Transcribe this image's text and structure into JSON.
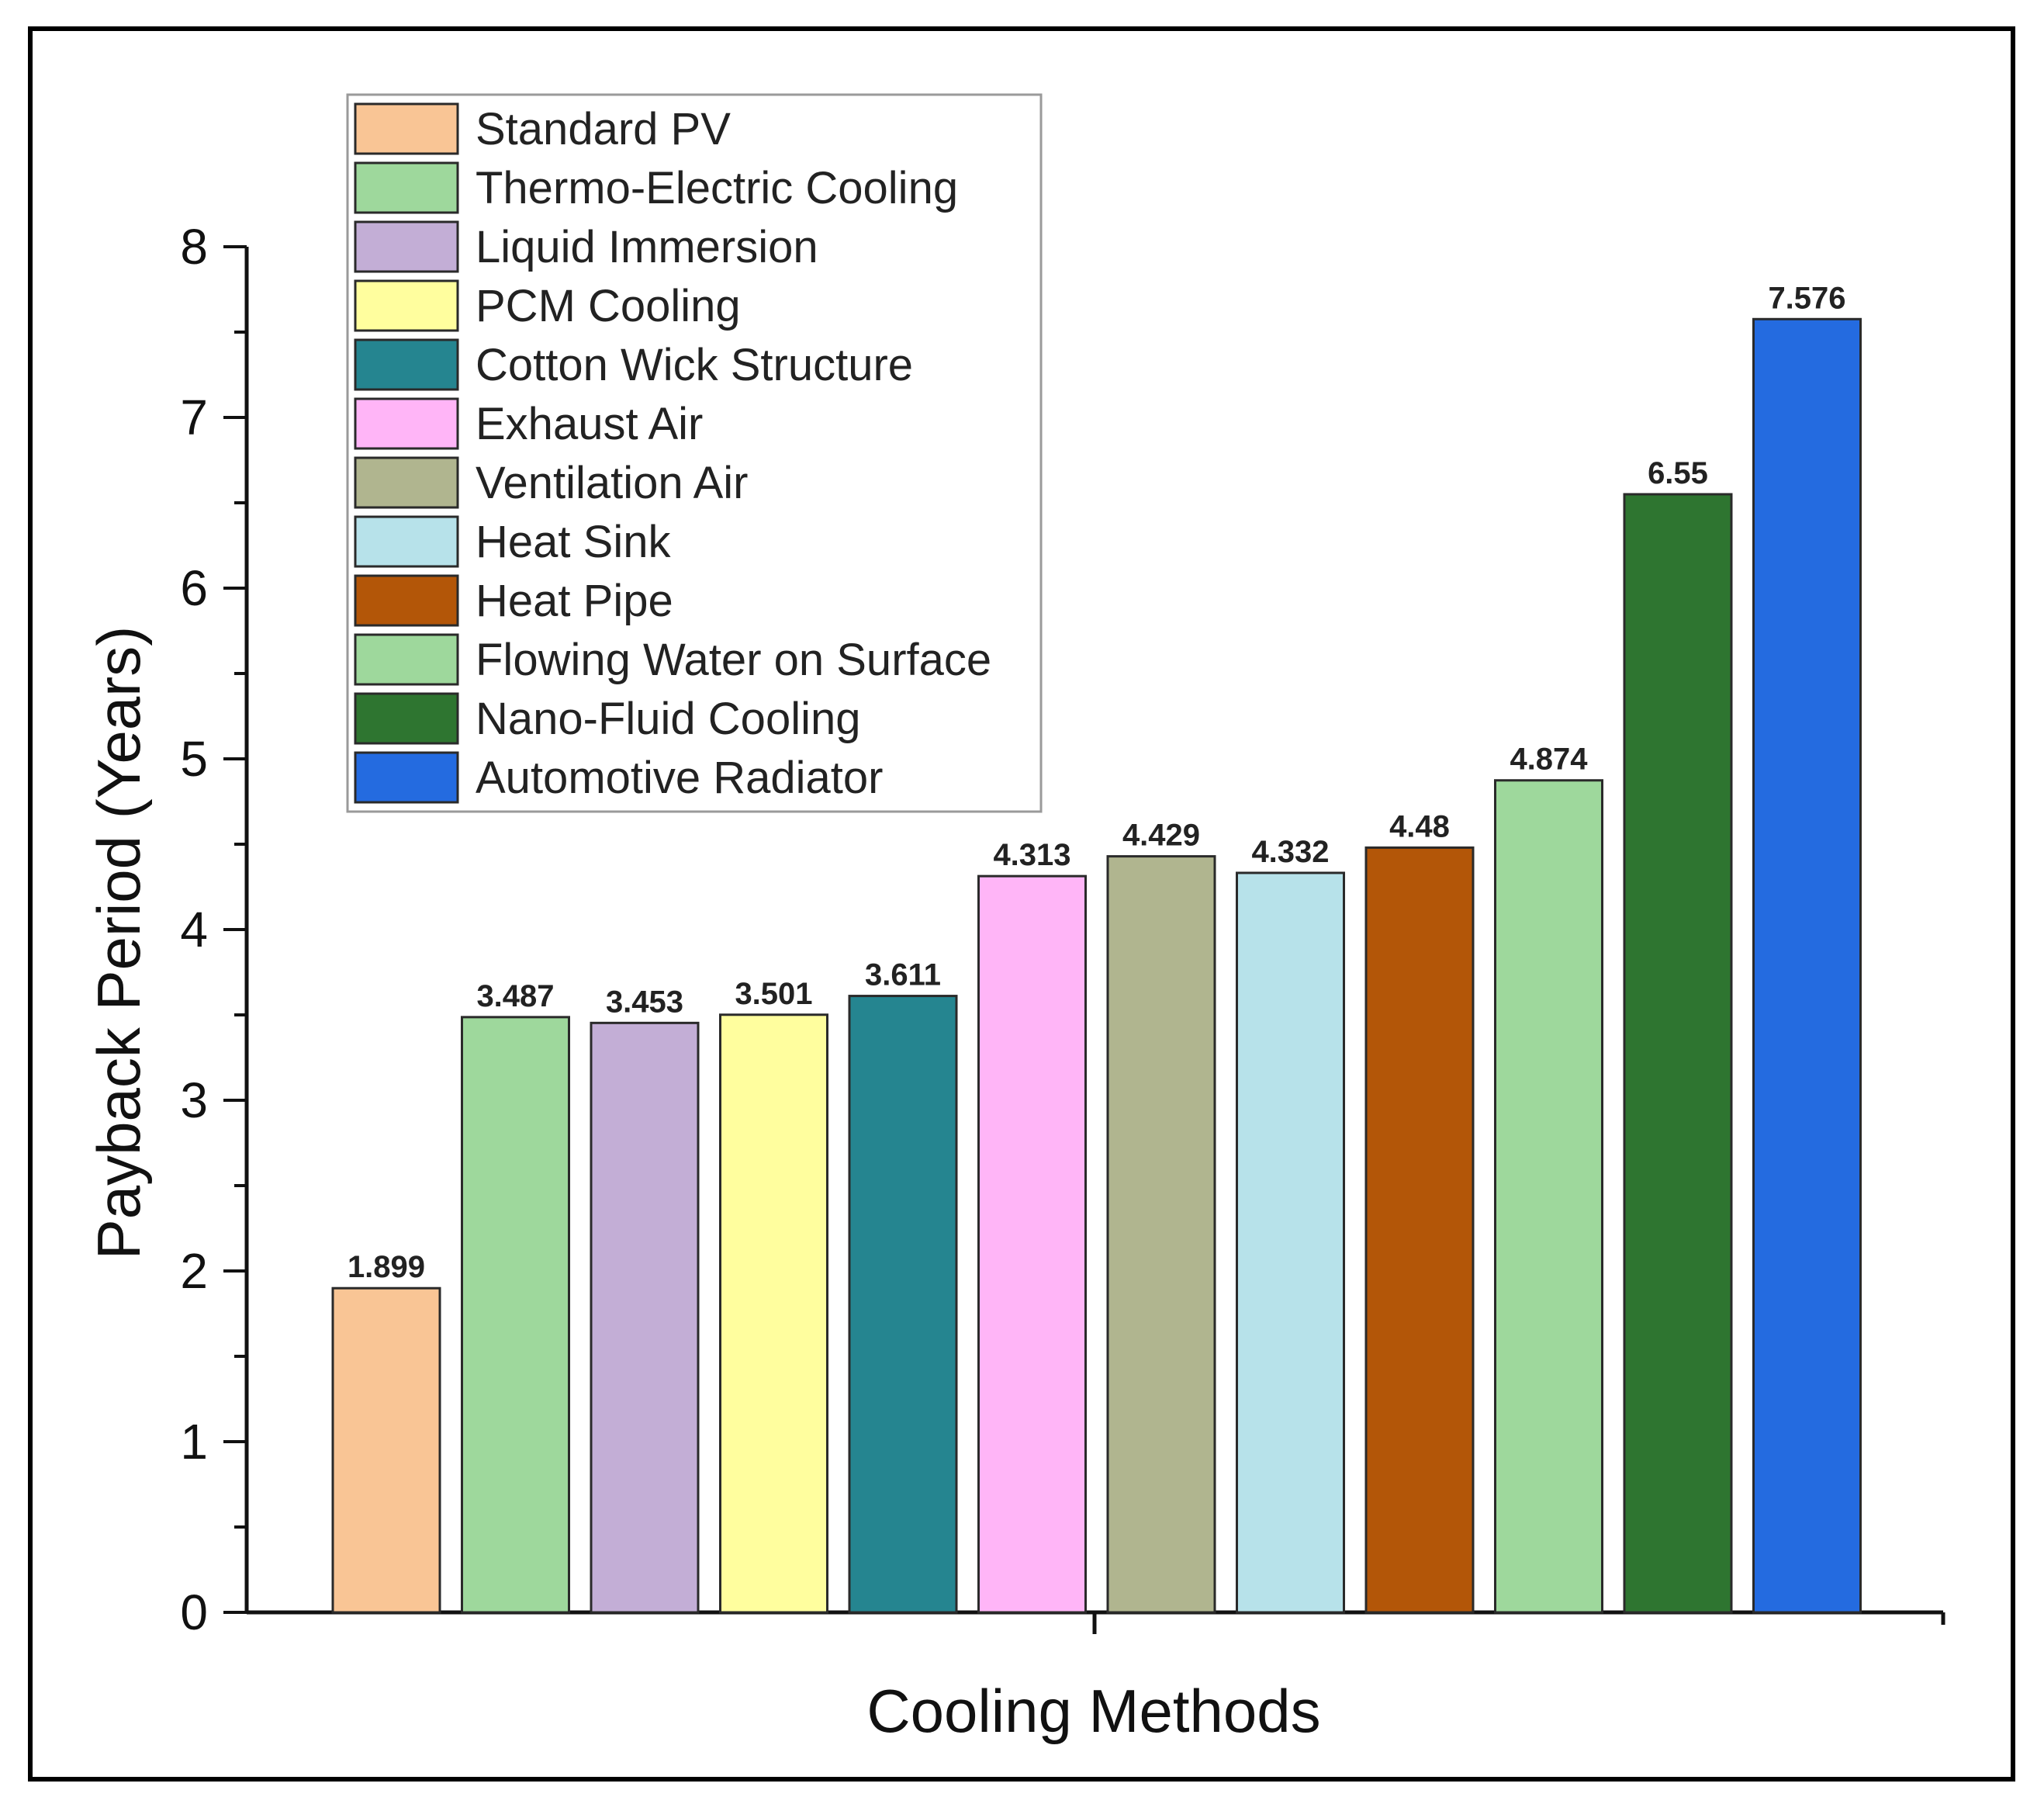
{
  "chart_data": {
    "type": "bar",
    "title": "",
    "xlabel": "Cooling Methods",
    "ylabel": "Payback Period (Years)",
    "ylim": [
      0,
      8
    ],
    "yticks": [
      0,
      1,
      2,
      3,
      4,
      5,
      6,
      7,
      8
    ],
    "grid": false,
    "legend_position": "top-left",
    "categories": [
      "Standard PV",
      "Thermo-Electric Cooling",
      "Liquid Immersion",
      "PCM Cooling",
      "Cotton Wick Structure",
      "Exhaust Air",
      "Ventilation Air",
      "Heat Sink",
      "Heat Pipe",
      "Flowing Water on Surface",
      "Nano-Fluid Cooling",
      "Automotive Radiator"
    ],
    "values": [
      1.899,
      3.487,
      3.453,
      3.501,
      3.611,
      4.313,
      4.429,
      4.332,
      4.48,
      4.874,
      6.55,
      7.576
    ],
    "value_labels": [
      "1.899",
      "3.487",
      "3.453",
      "3.501",
      "3.611",
      "4.313",
      "4.429",
      "4.332",
      "4.48",
      "4.874",
      "6.55",
      "7.576"
    ],
    "colors": [
      "#F9C595",
      "#9ED89C",
      "#C3AED6",
      "#FFFE9E",
      "#258590",
      "#FFB5F7",
      "#B0B58F",
      "#B7E2EA",
      "#B35608",
      "#9ED89C",
      "#2E7530",
      "#246BE0"
    ]
  }
}
